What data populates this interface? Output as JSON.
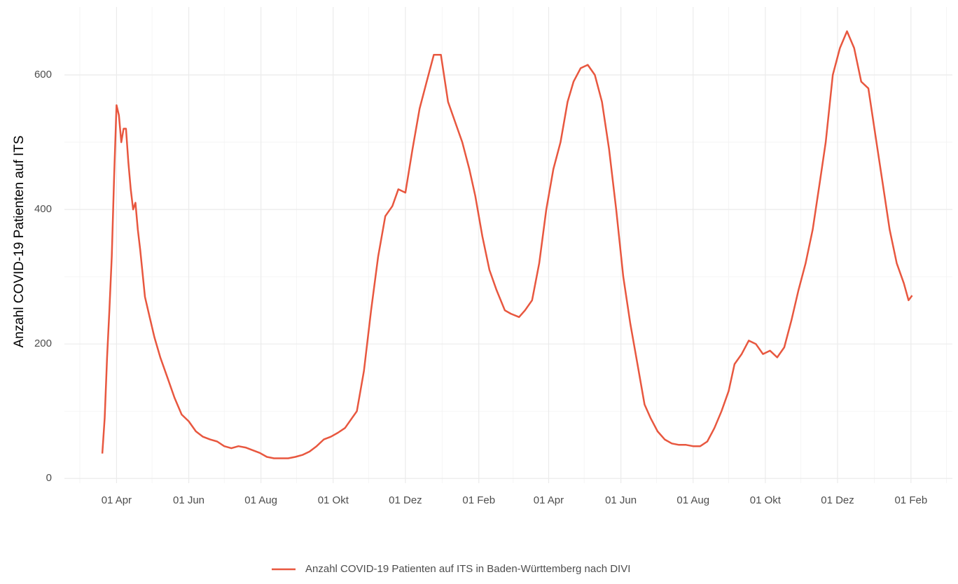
{
  "chart_data": {
    "type": "line",
    "y_label": "Anzahl COVID-19 Patienten auf ITS",
    "xlim": [
      -44,
      706
    ],
    "ylim": [
      -7,
      701
    ],
    "xticks": [
      {
        "value": 0,
        "label": "01 Apr"
      },
      {
        "value": 61,
        "label": "01 Jun"
      },
      {
        "value": 122,
        "label": "01 Aug"
      },
      {
        "value": 183,
        "label": "01 Okt"
      },
      {
        "value": 244,
        "label": "01 Dez"
      },
      {
        "value": 306,
        "label": "01 Feb"
      },
      {
        "value": 365,
        "label": "01 Apr"
      },
      {
        "value": 426,
        "label": "01 Jun"
      },
      {
        "value": 487,
        "label": "01 Aug"
      },
      {
        "value": 548,
        "label": "01 Okt"
      },
      {
        "value": 609,
        "label": "01 Dez"
      },
      {
        "value": 671,
        "label": "01 Feb"
      }
    ],
    "xminorticks": [
      -31,
      30,
      91,
      152,
      213,
      275,
      335,
      395,
      456,
      517,
      578,
      640,
      701
    ],
    "yticks": [
      0,
      200,
      400,
      600
    ],
    "yminorticks": [
      100,
      300,
      500
    ],
    "grid": true,
    "legend": "bottom",
    "series": [
      {
        "name": "Anzahl COVID-19 Patienten auf ITS in Baden-Württemberg nach DIVI",
        "color": "#e8573f",
        "x": [
          -12,
          -10,
          -8,
          -6,
          -4,
          -2,
          0,
          2,
          4,
          6,
          8,
          10,
          12,
          14,
          16,
          18,
          20,
          24,
          28,
          32,
          37,
          43,
          49,
          55,
          61,
          67,
          73,
          79,
          85,
          91,
          97,
          103,
          109,
          115,
          121,
          127,
          133,
          139,
          145,
          151,
          157,
          163,
          169,
          175,
          181,
          187,
          193,
          199,
          203,
          209,
          215,
          221,
          227,
          233,
          238,
          244,
          250,
          256,
          262,
          268,
          274,
          280,
          287,
          292,
          298,
          303,
          309,
          315,
          321,
          328,
          333,
          340,
          345,
          351,
          357,
          363,
          369,
          375,
          381,
          386,
          392,
          398,
          404,
          410,
          416,
          422,
          428,
          434,
          440,
          446,
          451,
          457,
          463,
          469,
          475,
          481,
          487,
          493,
          499,
          505,
          511,
          517,
          522,
          528,
          534,
          540,
          546,
          552,
          558,
          564,
          570,
          576,
          582,
          588,
          594,
          599,
          605,
          611,
          617,
          623,
          629,
          635,
          641,
          647,
          653,
          659,
          665,
          669,
          672
        ],
        "values": [
          37,
          90,
          180,
          250,
          330,
          450,
          555,
          540,
          500,
          520,
          520,
          470,
          430,
          400,
          410,
          370,
          340,
          270,
          240,
          210,
          180,
          150,
          120,
          95,
          85,
          70,
          62,
          58,
          55,
          48,
          45,
          48,
          46,
          42,
          38,
          32,
          30,
          30,
          30,
          32,
          35,
          40,
          48,
          58,
          62,
          68,
          75,
          90,
          100,
          160,
          250,
          330,
          390,
          405,
          430,
          425,
          490,
          550,
          590,
          630,
          630,
          560,
          525,
          500,
          460,
          420,
          360,
          310,
          280,
          250,
          245,
          240,
          250,
          265,
          320,
          400,
          460,
          500,
          560,
          590,
          610,
          615,
          600,
          560,
          490,
          400,
          300,
          230,
          170,
          110,
          90,
          70,
          58,
          52,
          50,
          50,
          48,
          48,
          55,
          75,
          100,
          130,
          170,
          185,
          205,
          200,
          185,
          190,
          180,
          195,
          235,
          280,
          320,
          370,
          440,
          500,
          600,
          640,
          665,
          640,
          590,
          580,
          510,
          440,
          370,
          320,
          290,
          265,
          272
        ]
      }
    ]
  }
}
